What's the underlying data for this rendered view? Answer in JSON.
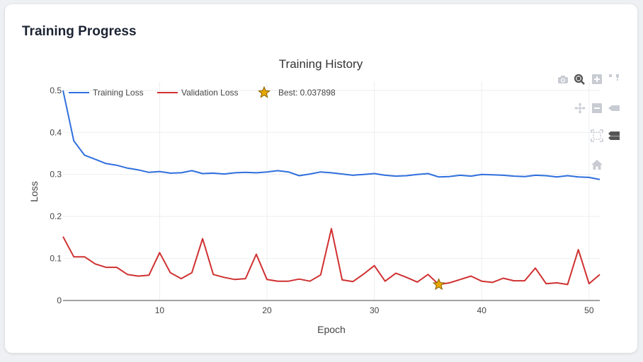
{
  "card": {
    "title": "Training Progress"
  },
  "modebar": [
    {
      "name": "camera-icon"
    },
    {
      "name": "zoom-icon"
    },
    {
      "name": "zoom-in-icon"
    },
    {
      "name": "autoscale-select-icon"
    },
    {
      "name": "pan-icon"
    },
    {
      "name": "zoom-out-icon"
    },
    {
      "name": "hover-closest-icon"
    },
    {
      "name": "autoscale-icon"
    },
    {
      "name": "hover-compare-icon"
    },
    {
      "name": "reset-axes-icon"
    }
  ],
  "chart_data": {
    "type": "line",
    "title": "Training History",
    "xlabel": "Epoch",
    "ylabel": "Loss",
    "xlim": [
      1,
      51
    ],
    "ylim": [
      0,
      0.52
    ],
    "xticks": [
      10,
      20,
      30,
      40,
      50
    ],
    "yticks": [
      0,
      0.1,
      0.2,
      0.3,
      0.4,
      0.5
    ],
    "ytick_labels": [
      "0",
      "0.1",
      "0.2",
      "0.3",
      "0.4",
      "0.5"
    ],
    "grid": true,
    "legend_position": "top-left",
    "x": [
      1,
      2,
      3,
      4,
      5,
      6,
      7,
      8,
      9,
      10,
      11,
      12,
      13,
      14,
      15,
      16,
      17,
      18,
      19,
      20,
      21,
      22,
      23,
      24,
      25,
      26,
      27,
      28,
      29,
      30,
      31,
      32,
      33,
      34,
      35,
      36,
      37,
      38,
      39,
      40,
      41,
      42,
      43,
      44,
      45,
      46,
      47,
      48,
      49,
      50,
      51
    ],
    "series": [
      {
        "name": "Training Loss",
        "color": "#2f6fdd",
        "values": [
          0.5,
          0.38,
          0.346,
          0.336,
          0.326,
          0.322,
          0.315,
          0.311,
          0.305,
          0.307,
          0.303,
          0.304,
          0.309,
          0.302,
          0.303,
          0.301,
          0.304,
          0.305,
          0.304,
          0.306,
          0.309,
          0.306,
          0.297,
          0.301,
          0.306,
          0.304,
          0.301,
          0.298,
          0.3,
          0.302,
          0.298,
          0.296,
          0.297,
          0.3,
          0.302,
          0.294,
          0.295,
          0.298,
          0.296,
          0.3,
          0.299,
          0.298,
          0.296,
          0.295,
          0.298,
          0.297,
          0.294,
          0.297,
          0.294,
          0.293,
          0.288
        ]
      },
      {
        "name": "Validation Loss",
        "color": "#d03030",
        "values": [
          0.152,
          0.104,
          0.104,
          0.087,
          0.079,
          0.079,
          0.062,
          0.058,
          0.06,
          0.114,
          0.066,
          0.052,
          0.066,
          0.147,
          0.062,
          0.055,
          0.05,
          0.052,
          0.11,
          0.05,
          0.046,
          0.046,
          0.051,
          0.046,
          0.061,
          0.171,
          0.049,
          0.045,
          0.063,
          0.083,
          0.046,
          0.065,
          0.055,
          0.044,
          0.062,
          0.038,
          0.042,
          0.05,
          0.058,
          0.046,
          0.043,
          0.053,
          0.047,
          0.047,
          0.077,
          0.04,
          0.042,
          0.038,
          0.121,
          0.04,
          0.062
        ]
      }
    ],
    "best_marker": {
      "label": "Best: 0.037898",
      "x": 36,
      "y": 0.037898,
      "color": "#e6a800"
    }
  }
}
